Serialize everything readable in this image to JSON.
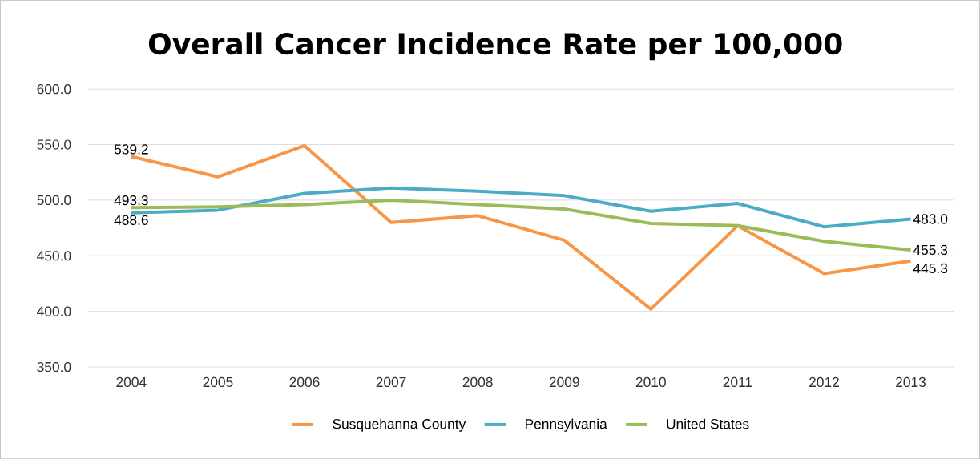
{
  "chart_data": {
    "type": "line",
    "title": "Overall Cancer Incidence Rate per 100,000",
    "categories": [
      "2004",
      "2005",
      "2006",
      "2007",
      "2008",
      "2009",
      "2010",
      "2011",
      "2012",
      "2013"
    ],
    "series": [
      {
        "name": "Susquehanna County",
        "color": "#f79646",
        "values": [
          539.2,
          521,
          549,
          480,
          486,
          464,
          402,
          477,
          434,
          445.3
        ],
        "value_labels": [
          "539.2",
          null,
          null,
          null,
          null,
          null,
          null,
          null,
          null,
          "445.3"
        ]
      },
      {
        "name": "Pennsylvania",
        "color": "#4bacc6",
        "values": [
          488.6,
          491,
          506,
          511,
          508,
          504,
          490,
          497,
          476,
          483.0
        ],
        "value_labels": [
          "488.6",
          null,
          null,
          null,
          null,
          null,
          null,
          null,
          null,
          "483.0"
        ]
      },
      {
        "name": "United States",
        "color": "#9bbb59",
        "values": [
          493.3,
          494,
          496,
          500,
          496,
          492,
          479,
          477,
          463,
          455.3
        ],
        "value_labels": [
          "493.3",
          null,
          null,
          null,
          null,
          null,
          null,
          null,
          null,
          "455.3"
        ]
      }
    ],
    "ylim": [
      350,
      600
    ],
    "yticks": [
      {
        "value": 350,
        "label": "350.0"
      },
      {
        "value": 400,
        "label": "400.0"
      },
      {
        "value": 450,
        "label": "450.0"
      },
      {
        "value": 500,
        "label": "500.0"
      },
      {
        "value": 550,
        "label": "550.0"
      },
      {
        "value": 600,
        "label": "600.0"
      }
    ],
    "grid": "y",
    "legend": "bottom"
  }
}
